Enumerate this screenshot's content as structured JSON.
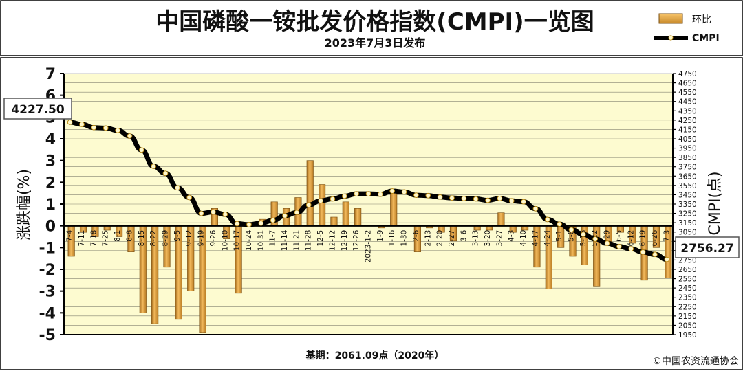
{
  "header": {
    "title": "中国磷酸一铵批发价格指数(CMPI)一览图",
    "date_line": "2023年7月3日发布"
  },
  "legend": {
    "bar_label": "环比",
    "line_label": "CMPI"
  },
  "footer": {
    "base_label": "基期：2061.09点（2020年）",
    "copyright": "©中国农资流通协会"
  },
  "callouts": {
    "first_value": "4227.50",
    "last_value": "2756.27"
  },
  "chart_data": {
    "type": "bar+line",
    "left_axis": {
      "label": "涨跌幅(%)",
      "range": [
        -5,
        7
      ],
      "ticks": [
        "-5",
        "-4",
        "-3",
        "-2",
        "-1",
        "0",
        "1",
        "2",
        "3",
        "4",
        "5",
        "6",
        "7"
      ]
    },
    "right_axis": {
      "label": "CMPI(点)",
      "range": [
        1950,
        4750
      ],
      "ticks": [
        "1950",
        "2050",
        "2150",
        "2250",
        "2350",
        "2450",
        "2550",
        "2650",
        "2750",
        "2850",
        "2950",
        "3050",
        "3150",
        "3250",
        "3350",
        "3450",
        "3550",
        "3650",
        "3750",
        "3850",
        "3950",
        "4050",
        "4150",
        "4250",
        "4350",
        "4450",
        "4550",
        "4650",
        "4750"
      ]
    },
    "categories": [
      "7-4",
      "7-11",
      "7-18",
      "7-25",
      "8-1",
      "8-8",
      "8-15",
      "8-22",
      "8-29",
      "9-5",
      "9-12",
      "9-19",
      "9-26",
      "10-10",
      "10-17",
      "10-24",
      "10-31",
      "11-7",
      "11-14",
      "11-21",
      "11-28",
      "12-5",
      "12-12",
      "12-19",
      "12-26",
      "2023-1-2",
      "1-9",
      "1-16",
      "1-30",
      "2-6",
      "2-13",
      "2-20",
      "2-27",
      "3-6",
      "3-13",
      "3-20",
      "3-27",
      "4-3",
      "4-10",
      "4-17",
      "4-24",
      "5-1",
      "5-8",
      "5-16",
      "5-22",
      "5-29",
      "6-5",
      "6-12",
      "6-19",
      "6-26",
      "7-3"
    ],
    "series": [
      {
        "name": "环比",
        "axis": "left",
        "values": [
          -1.4,
          -0.3,
          -0.5,
          -0.2,
          -0.5,
          -1.2,
          -4.0,
          -4.5,
          -1.9,
          -4.3,
          -3.0,
          -4.9,
          0.8,
          -0.6,
          -3.1,
          0.0,
          0.3,
          1.1,
          0.8,
          1.3,
          3.0,
          1.9,
          0.4,
          1.1,
          0.8,
          0.0,
          -0.1,
          1.5,
          0.0,
          -1.2,
          -0.1,
          -0.3,
          -0.7,
          0.0,
          -0.2,
          -0.2,
          0.6,
          -0.3,
          -0.2,
          -1.9,
          -2.9,
          -1.0,
          -1.4,
          -1.8,
          -2.8,
          -0.8,
          -0.3,
          -0.8,
          -2.5,
          -1.0,
          -2.4
        ]
      },
      {
        "name": "CMPI",
        "axis": "right",
        "values": [
          4227.5,
          4205,
          4170,
          4165,
          4140,
          4080,
          3930,
          3755,
          3680,
          3525,
          3420,
          3250,
          3265,
          3240,
          3140,
          3130,
          3145,
          3175,
          3225,
          3260,
          3340,
          3385,
          3405,
          3435,
          3460,
          3460,
          3455,
          3490,
          3480,
          3445,
          3440,
          3425,
          3415,
          3410,
          3405,
          3390,
          3410,
          3385,
          3375,
          3300,
          3185,
          3135,
          3075,
          3025,
          2975,
          2930,
          2895,
          2870,
          2835,
          2810,
          2756.27
        ]
      }
    ],
    "grid": true
  }
}
